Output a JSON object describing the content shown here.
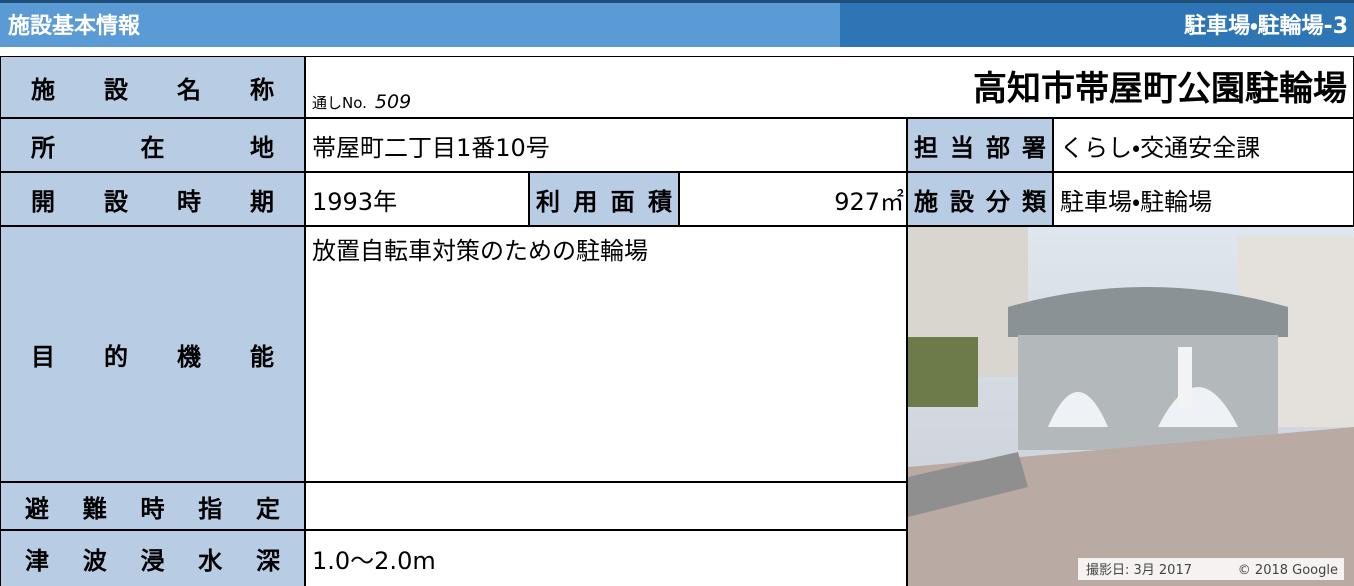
{
  "header": {
    "title": "施設基本情報",
    "code": "駐車場・駐輪場-3"
  },
  "facility": {
    "name_label": "施設名称",
    "serial_label": "通しNo.",
    "serial": "509",
    "name": "高知市帯屋町公園駐輪場",
    "location_label": "所在地",
    "location": "帯屋町二丁目1番10号",
    "department_label": "担当部署",
    "department": "くらし・交通安全課",
    "opened_label": "開設時期",
    "opened": "1993年",
    "area_label": "利用面積",
    "area": "927㎡",
    "category_label": "施設分類",
    "category": "駐車場・駐輪場",
    "purpose_label": "目的機能",
    "purpose": "放置自転車対策のための駐輪場",
    "evacuation_label": "避難時指定",
    "tsunami_label": "津波浸水深",
    "tsunami": "1.0〜2.0m"
  },
  "photo": {
    "date": "撮影日: 3月 2017",
    "credit": "© 2018 Google"
  }
}
